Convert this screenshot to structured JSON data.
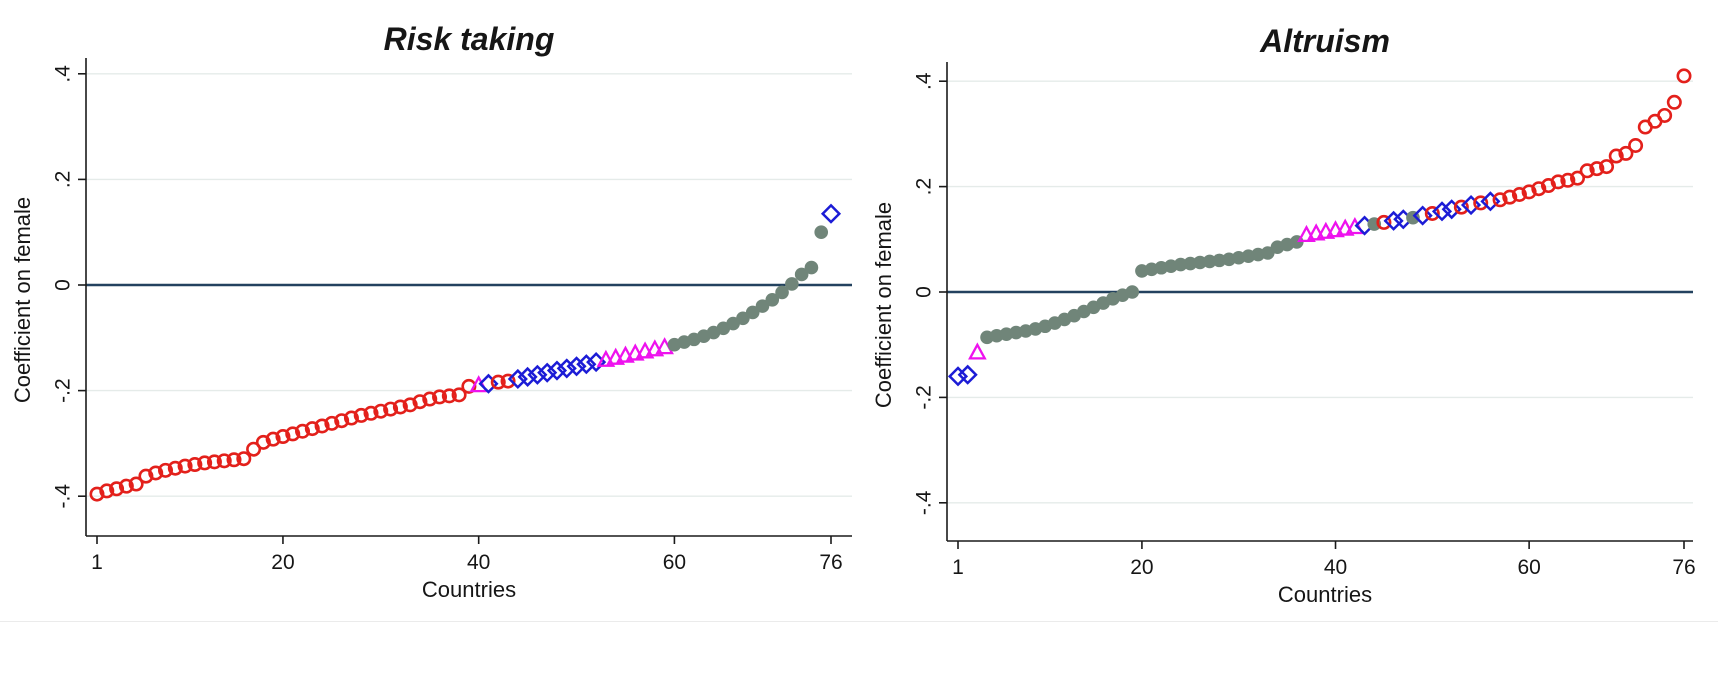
{
  "colors": {
    "title_navy": "#1c3563",
    "axis_line": "#1a1a1a",
    "grid_line": "#e5ebe9",
    "zero_line": "#23425f",
    "red_marker": "#e3201b",
    "blue_marker": "#1c1cd6",
    "magenta_marker": "#ee12ee",
    "gray_green_marker": "#708579",
    "background": "#ffffff"
  },
  "chart_data": [
    {
      "type": "scatter",
      "title": "Risk taking",
      "xlabel": "Countries",
      "ylabel": "Coefficient on female",
      "xlim": [
        1,
        76
      ],
      "ylim": [
        -0.47,
        0.45
      ],
      "x_ticks": [
        1,
        20,
        40,
        60,
        76
      ],
      "y_ticks": [
        0.4,
        0.2,
        0,
        -0.2,
        -0.4
      ],
      "y_tick_labels": [
        ".4",
        ".2",
        "0",
        "-.2",
        "-.4"
      ],
      "grid": "horizontal",
      "zero_reference_line": true,
      "legend_position": "none",
      "n_points": 76,
      "marker_key": {
        "r": "open-circle-red",
        "d": "open-diamond-blue",
        "t": "open-triangle-magenta",
        "g": "filled-circle-graygreen"
      },
      "markers": "rrrrrrrrrrrrrrrrrrrrrrrrrrrrrrrrrrrrrrrtdrrdddddddddtttttttggggggggggggggggd",
      "x": "1..76 (rank order)",
      "values": [
        -0.396,
        -0.39,
        -0.386,
        -0.381,
        -0.377,
        -0.362,
        -0.356,
        -0.351,
        -0.347,
        -0.343,
        -0.34,
        -0.337,
        -0.335,
        -0.333,
        -0.331,
        -0.329,
        -0.311,
        -0.298,
        -0.292,
        -0.287,
        -0.282,
        -0.277,
        -0.272,
        -0.267,
        -0.262,
        -0.257,
        -0.252,
        -0.247,
        -0.243,
        -0.239,
        -0.235,
        -0.231,
        -0.227,
        -0.221,
        -0.216,
        -0.212,
        -0.21,
        -0.208,
        -0.192,
        -0.19,
        -0.187,
        -0.184,
        -0.182,
        -0.178,
        -0.174,
        -0.17,
        -0.166,
        -0.162,
        -0.158,
        -0.154,
        -0.15,
        -0.146,
        -0.142,
        -0.138,
        -0.134,
        -0.13,
        -0.126,
        -0.122,
        -0.118,
        -0.113,
        -0.108,
        -0.103,
        -0.097,
        -0.09,
        -0.082,
        -0.073,
        -0.063,
        -0.052,
        -0.04,
        -0.028,
        -0.014,
        0.002,
        0.02,
        0.033,
        0.1,
        0.135
      ]
    },
    {
      "type": "scatter",
      "title": "Altruism",
      "xlabel": "Countries",
      "ylabel": "Coefficient on female",
      "xlim": [
        1,
        76
      ],
      "ylim": [
        -0.47,
        0.45
      ],
      "x_ticks": [
        1,
        20,
        40,
        60,
        76
      ],
      "y_ticks": [
        0.4,
        0.2,
        0,
        -0.2,
        -0.4
      ],
      "y_tick_labels": [
        ".4",
        ".2",
        "0",
        "-.2",
        "-.4"
      ],
      "grid": "horizontal",
      "zero_reference_line": true,
      "legend_position": "none",
      "n_points": 76,
      "marker_key": {
        "r": "open-circle-red",
        "d": "open-diamond-blue",
        "t": "open-triangle-magenta",
        "g": "filled-circle-graygreen"
      },
      "markers": "ddtgggggggggggggggggggggggggggggggggttttttdgrddgdrddrdrdrrrrrrrrrrrrrrrrrrrr",
      "x": "1..76 (rank order)",
      "values": [
        -0.16,
        -0.157,
        -0.115,
        -0.086,
        -0.083,
        -0.08,
        -0.077,
        -0.074,
        -0.07,
        -0.065,
        -0.059,
        -0.052,
        -0.045,
        -0.037,
        -0.029,
        -0.021,
        -0.013,
        -0.006,
        0.0,
        0.04,
        0.043,
        0.046,
        0.049,
        0.052,
        0.054,
        0.056,
        0.058,
        0.06,
        0.062,
        0.065,
        0.068,
        0.071,
        0.074,
        0.085,
        0.09,
        0.095,
        0.108,
        0.111,
        0.114,
        0.117,
        0.12,
        0.123,
        0.126,
        0.129,
        0.132,
        0.135,
        0.138,
        0.141,
        0.145,
        0.149,
        0.153,
        0.157,
        0.161,
        0.165,
        0.169,
        0.172,
        0.175,
        0.18,
        0.185,
        0.19,
        0.196,
        0.202,
        0.209,
        0.212,
        0.216,
        0.23,
        0.234,
        0.238,
        0.258,
        0.263,
        0.278,
        0.313,
        0.324,
        0.335,
        0.36,
        0.41
      ]
    }
  ]
}
